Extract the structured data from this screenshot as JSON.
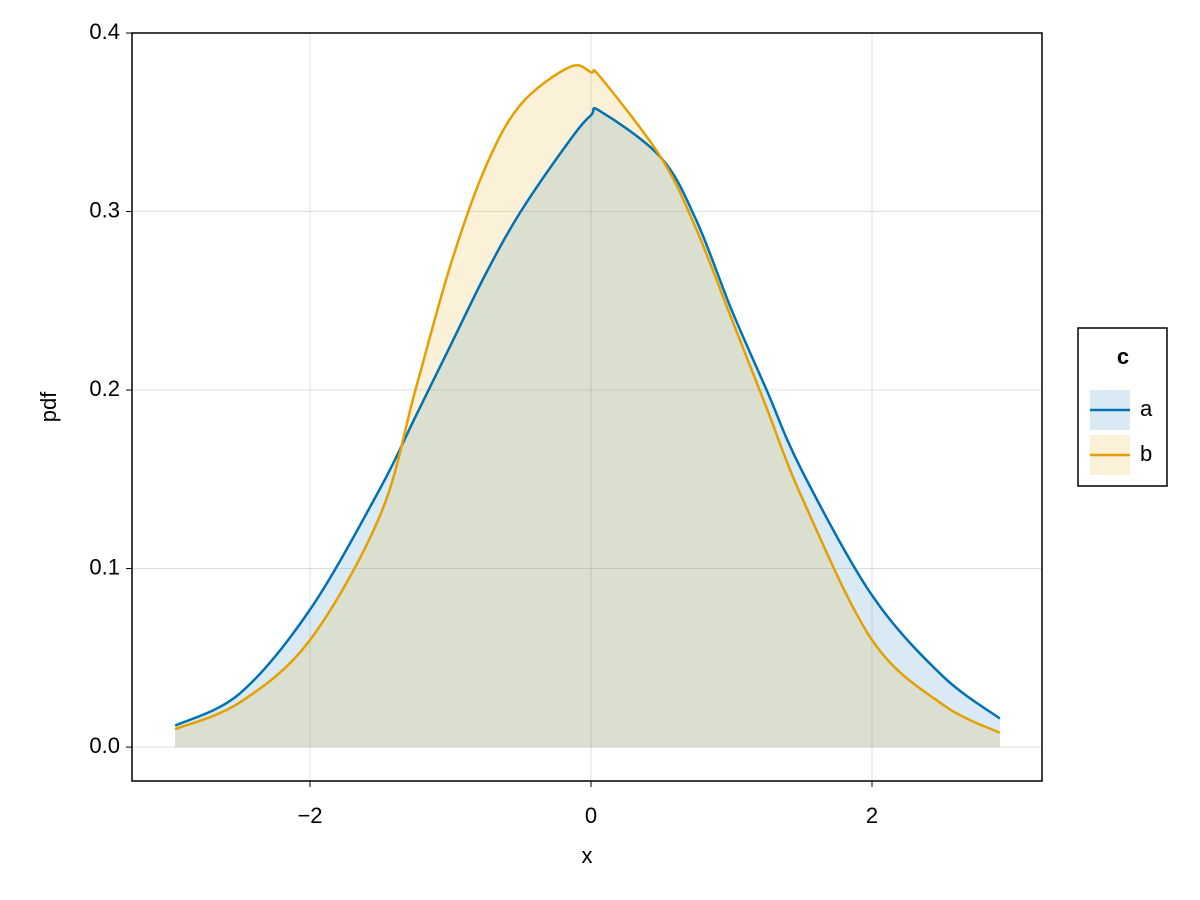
{
  "chart_data": {
    "type": "density",
    "x_label": "x",
    "y_label": "pdf",
    "x": [
      -2.96,
      -2.5,
      -2,
      -1.5,
      -1.25,
      -1,
      -0.75,
      -0.5,
      -0.15,
      0,
      0.07,
      0.5,
      0.75,
      1,
      1.25,
      1.5,
      2,
      2.5,
      2.91
    ],
    "series": [
      {
        "name": "a",
        "color": "#0072b2",
        "values": [
          0.012,
          0.03,
          0.077,
          0.145,
          0.185,
          0.225,
          0.265,
          0.3,
          0.34,
          0.354,
          0.356,
          0.33,
          0.295,
          0.245,
          0.2,
          0.155,
          0.085,
          0.04,
          0.016
        ]
      },
      {
        "name": "b",
        "color": "#e69f00",
        "values": [
          0.01,
          0.025,
          0.06,
          0.13,
          0.2,
          0.27,
          0.325,
          0.36,
          0.381,
          0.378,
          0.375,
          0.33,
          0.29,
          0.24,
          0.19,
          0.14,
          0.06,
          0.024,
          0.008
        ]
      }
    ],
    "legend_title": "c",
    "legend_position": "right",
    "xlim": [
      -3.267,
      3.21
    ],
    "ylim": [
      -0.019,
      0.4
    ],
    "xticks": [
      {
        "value": -2,
        "label": "−2"
      },
      0,
      2
    ],
    "yticks": [
      {
        "value": 0,
        "label": "0.0"
      },
      0.1,
      0.2,
      0.3,
      0.4
    ],
    "grid": true
  }
}
